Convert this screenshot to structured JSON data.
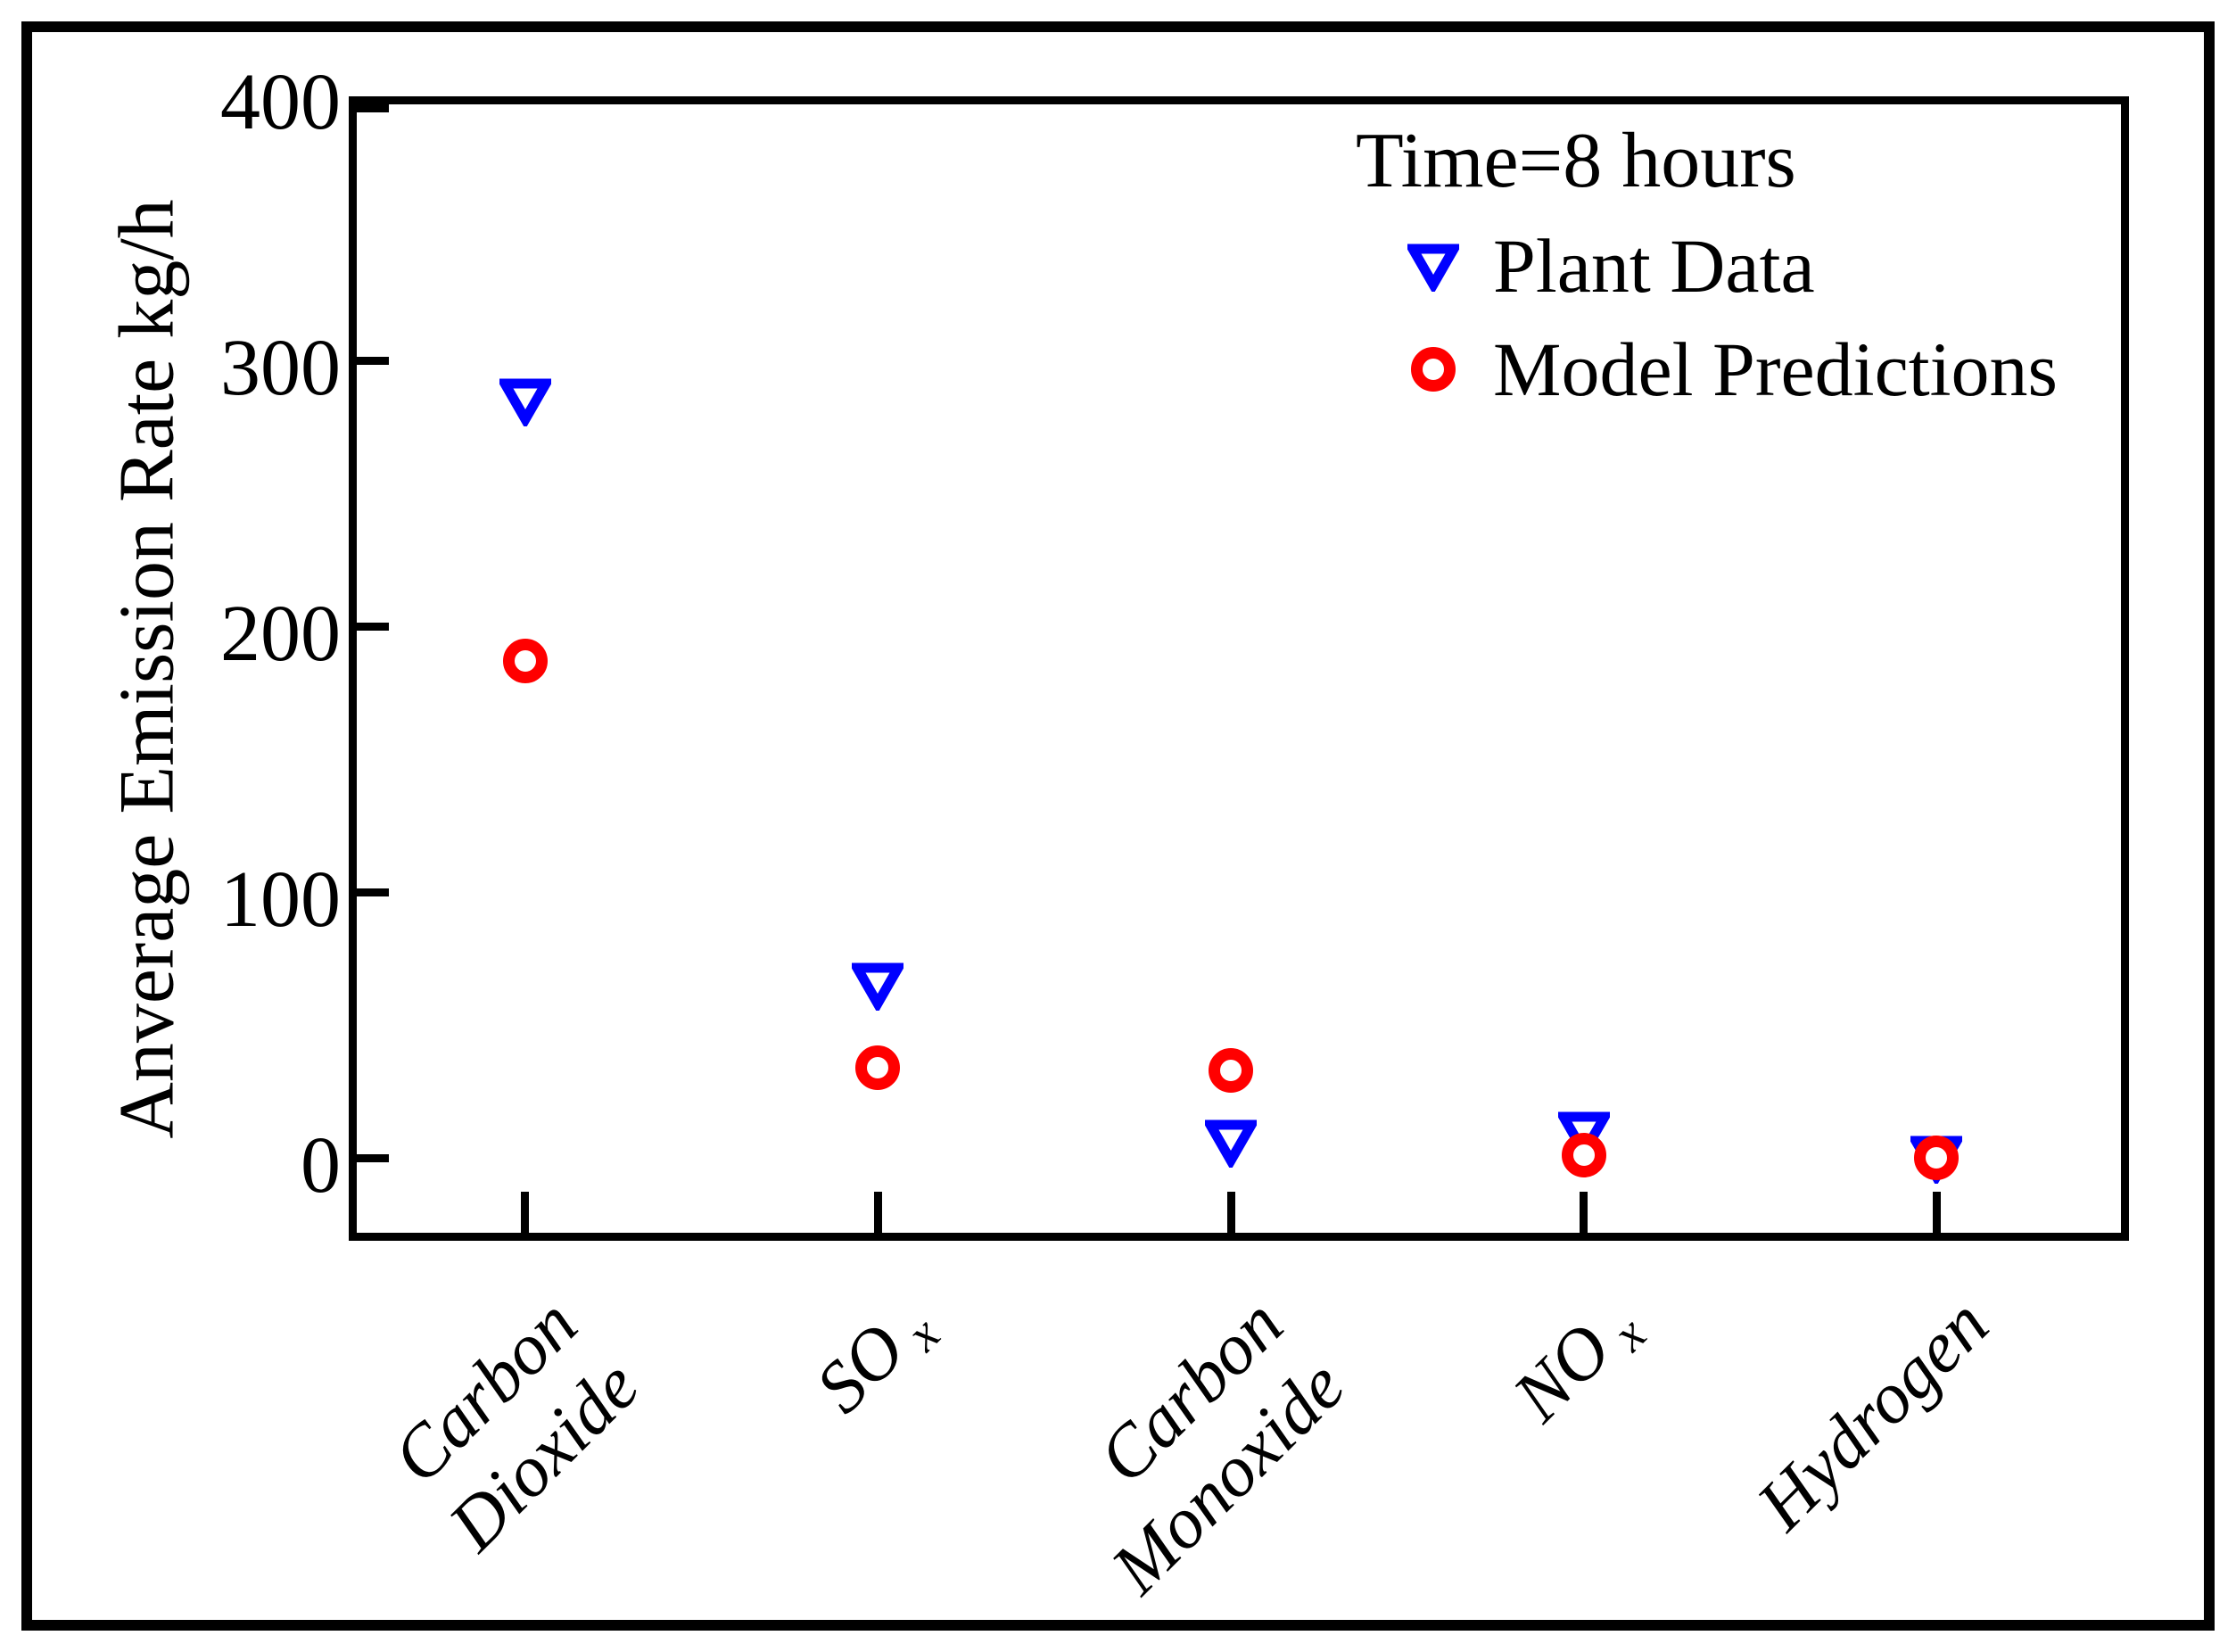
{
  "figure": {
    "background": "#ffffff",
    "border_color": "#000000"
  },
  "chart_data": {
    "type": "scatter",
    "title": "",
    "xlabel": "",
    "ylabel": "Anverage Emission Rate kg/h",
    "ylim": [
      -25,
      400
    ],
    "y_ticks": [
      0,
      100,
      200,
      300,
      400
    ],
    "grid": false,
    "legend": {
      "position": "top-right-inside",
      "title": "Time=8 hours"
    },
    "categories": [
      {
        "label": "Carbon Dioxide",
        "lines": [
          "Carbon",
          "Dioxide"
        ],
        "sub": ""
      },
      {
        "label": "SOx",
        "lines": [
          "SO"
        ],
        "sub": "x"
      },
      {
        "label": "Carbon Monoxide",
        "lines": [
          "Carbon",
          "Monoxide"
        ],
        "sub": ""
      },
      {
        "label": "NOx",
        "lines": [
          "NO"
        ],
        "sub": "x"
      },
      {
        "label": "Hydrogen",
        "lines": [
          "Hydrogen"
        ],
        "sub": ""
      }
    ],
    "series": [
      {
        "name": "Plant Data",
        "marker": "triangle-down",
        "color": "#0000ff",
        "values": [
          285,
          65,
          6,
          9,
          0
        ]
      },
      {
        "name": "Model Predictions",
        "marker": "circle",
        "color": "#ff0000",
        "values": [
          187,
          34,
          33,
          1,
          0
        ]
      }
    ]
  }
}
